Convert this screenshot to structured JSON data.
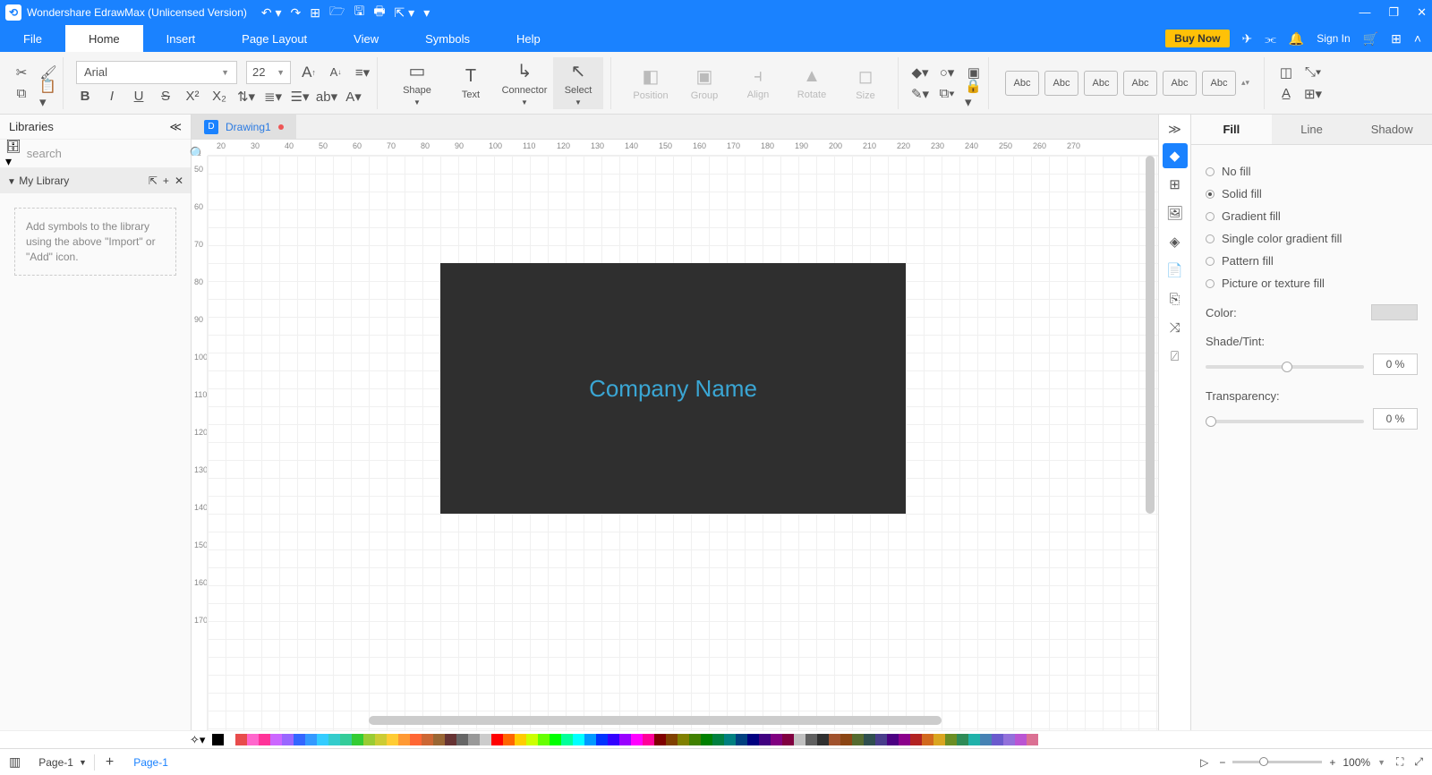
{
  "title": "Wondershare EdrawMax (Unlicensed Version)",
  "menu": {
    "items": [
      "File",
      "Home",
      "Insert",
      "Page Layout",
      "View",
      "Symbols",
      "Help"
    ],
    "active": "Home",
    "buy": "Buy Now",
    "signin": "Sign In"
  },
  "font": {
    "name": "Arial",
    "size": "22"
  },
  "ribbon_big": [
    {
      "label": "Shape",
      "icon": "▭",
      "dd": true
    },
    {
      "label": "Text",
      "icon": "T"
    },
    {
      "label": "Connector",
      "icon": "↳",
      "dd": true
    },
    {
      "label": "Select",
      "icon": "↖",
      "selected": true,
      "dd": true
    }
  ],
  "ribbon_big2": [
    {
      "label": "Position",
      "icon": "◧",
      "disabled": true
    },
    {
      "label": "Group",
      "icon": "▣",
      "disabled": true
    },
    {
      "label": "Align",
      "icon": "⫞",
      "disabled": true
    },
    {
      "label": "Rotate",
      "icon": "▲",
      "disabled": true
    },
    {
      "label": "Size",
      "icon": "◻",
      "disabled": true
    }
  ],
  "libraries": {
    "title": "Libraries",
    "search_placeholder": "search",
    "mylib": "My Library",
    "hint": "Add symbols to the library using the above \"Import\" or \"Add\" icon."
  },
  "doc_tab": "Drawing1",
  "ruler_h": [
    "20",
    "30",
    "40",
    "50",
    "60",
    "70",
    "80",
    "90",
    "100",
    "110",
    "120",
    "130",
    "140",
    "150",
    "160",
    "170",
    "180",
    "190",
    "200",
    "210",
    "220",
    "230",
    "240",
    "250",
    "260",
    "270"
  ],
  "ruler_v": [
    "50",
    "60",
    "70",
    "80",
    "90",
    "100",
    "110",
    "120",
    "130",
    "140",
    "150",
    "160",
    "170"
  ],
  "canvas": {
    "shape_text": "Company Name",
    "shape_bg": "#2f2f2f",
    "shape_text_color": "#3aa6d4"
  },
  "right_panel": {
    "tabs": [
      "Fill",
      "Line",
      "Shadow"
    ],
    "active_tab": "Fill",
    "fill_options": [
      "No fill",
      "Solid fill",
      "Gradient fill",
      "Single color gradient fill",
      "Pattern fill",
      "Picture or texture fill"
    ],
    "selected_fill": "Solid fill",
    "color_label": "Color:",
    "shade_label": "Shade/Tint:",
    "shade_value": "0 %",
    "trans_label": "Transparency:",
    "trans_value": "0 %"
  },
  "abc_label": "Abc",
  "color_swatches": [
    "#000000",
    "#ffffff",
    "#e84c4c",
    "#ff66cc",
    "#ff3399",
    "#cc66ff",
    "#9966ff",
    "#3366ff",
    "#3399ff",
    "#33ccff",
    "#33cccc",
    "#33cc99",
    "#33cc33",
    "#99cc33",
    "#cccc33",
    "#ffcc33",
    "#ff9933",
    "#ff6633",
    "#cc6633",
    "#996633",
    "#663333",
    "#666666",
    "#999999",
    "#cccccc",
    "#ff0000",
    "#ff6600",
    "#ffcc00",
    "#ccff00",
    "#66ff00",
    "#00ff00",
    "#00ff99",
    "#00ffff",
    "#0099ff",
    "#0033ff",
    "#3300ff",
    "#9900ff",
    "#ff00ff",
    "#ff0099",
    "#800000",
    "#804000",
    "#808000",
    "#408000",
    "#008000",
    "#008040",
    "#008080",
    "#004080",
    "#000080",
    "#400080",
    "#800080",
    "#800040",
    "#c0c0c0",
    "#606060",
    "#303030",
    "#a0522d",
    "#8b4513",
    "#556b2f",
    "#2f4f4f",
    "#483d8b",
    "#4b0082",
    "#8b008b",
    "#b22222",
    "#d2691e",
    "#daa520",
    "#6b8e23",
    "#2e8b57",
    "#20b2aa",
    "#4682b4",
    "#6a5acd",
    "#9370db",
    "#ba55d3",
    "#db7093"
  ],
  "status": {
    "page_dd": "Page-1",
    "page_tab": "Page-1",
    "zoom": "100%"
  }
}
